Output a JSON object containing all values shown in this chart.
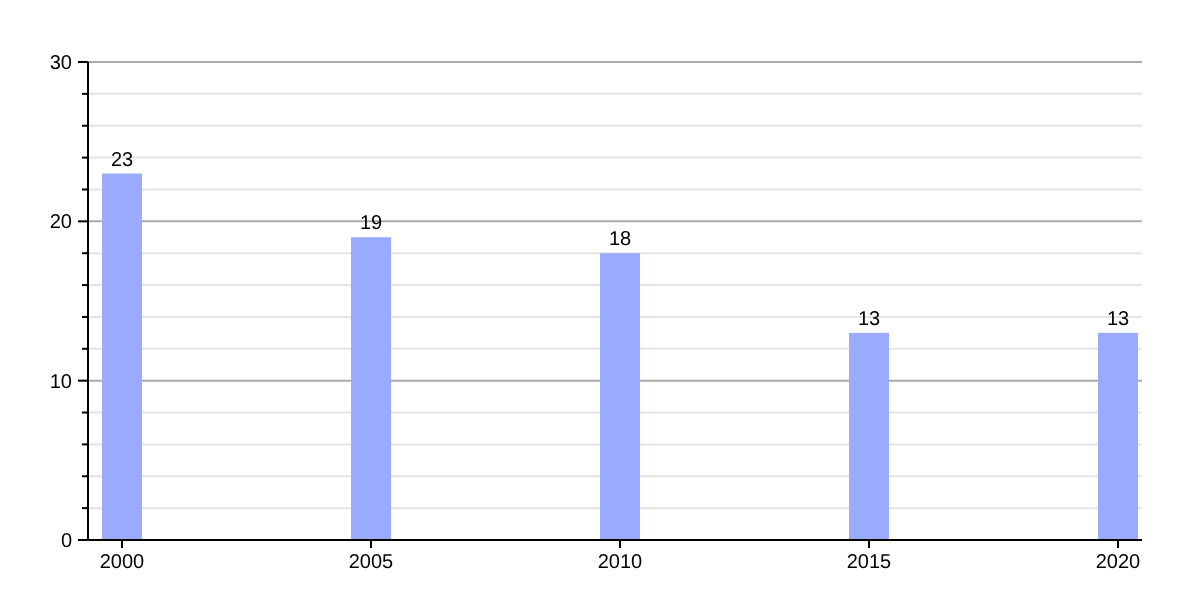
{
  "chart_data": {
    "type": "bar",
    "categories": [
      "2000",
      "2005",
      "2010",
      "2015",
      "2020"
    ],
    "values": [
      23,
      19,
      18,
      13,
      13
    ],
    "color": "#99aaff",
    "ylim": [
      0,
      30
    ],
    "yticks": [
      0,
      {
        "value": 2,
        "label": null
      },
      {
        "value": 4,
        "label": null
      },
      {
        "value": 6,
        "label": null
      },
      {
        "value": 8,
        "label": null
      },
      10,
      {
        "value": 12,
        "label": null
      },
      {
        "value": 14,
        "label": null
      },
      {
        "value": 16,
        "label": null
      },
      {
        "value": 18,
        "label": null
      },
      20,
      {
        "value": 22,
        "label": null
      },
      {
        "value": 24,
        "label": null
      },
      {
        "value": 26,
        "label": null
      },
      {
        "value": 28,
        "label": null
      },
      30
    ],
    "grid": true,
    "data_labels": true
  }
}
